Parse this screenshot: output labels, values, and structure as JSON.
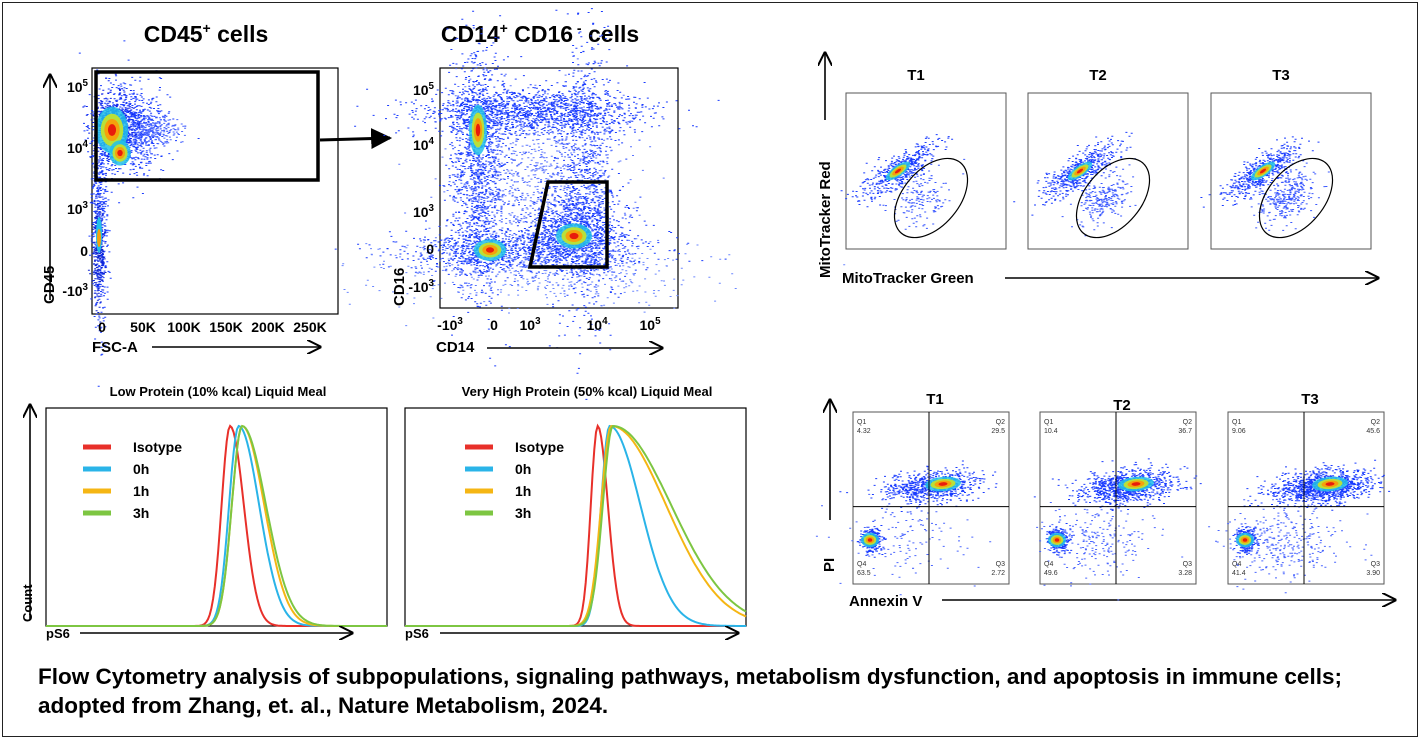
{
  "panel_cd45": {
    "title_main": "CD45",
    "title_sup": "+",
    "title_rest": " cells",
    "ylabel": "CD45",
    "xlabel": "FSC-A",
    "yticks": [
      {
        "base": "10",
        "exp": "5"
      },
      {
        "base": "10",
        "exp": "4"
      },
      {
        "base": "10",
        "exp": "3"
      },
      {
        "base": "0",
        "exp": ""
      },
      {
        "base": "-10",
        "exp": "3"
      }
    ],
    "xticks": [
      "0",
      "50K",
      "100K",
      "150K",
      "200K",
      "250K"
    ]
  },
  "panel_cd14": {
    "title_a": "CD14",
    "title_a_sup": "+",
    "title_b": " CD16",
    "title_b_sup": " -",
    "title_rest": " cells",
    "ylabel": "CD16",
    "xlabel": "CD14",
    "yticks": [
      {
        "base": "10",
        "exp": "5"
      },
      {
        "base": "10",
        "exp": "4"
      },
      {
        "base": "10",
        "exp": "3"
      },
      {
        "base": "0",
        "exp": ""
      },
      {
        "base": "-10",
        "exp": "3"
      }
    ],
    "xticks": [
      {
        "base": "-10",
        "exp": "3"
      },
      {
        "base": "0",
        "exp": ""
      },
      {
        "base": "10",
        "exp": "3"
      },
      {
        "base": "10",
        "exp": "4"
      },
      {
        "base": "10",
        "exp": "5"
      }
    ]
  },
  "mito": {
    "panels": [
      "T1",
      "T2",
      "T3"
    ],
    "ylabel": "MitoTracker Red",
    "xlabel": "MitoTracker Green"
  },
  "annexin": {
    "panels": [
      {
        "title": "T1",
        "q1_label": "Q1",
        "q1": "4.32",
        "q2_label": "Q2",
        "q2": "29.5",
        "q3_label": "Q3",
        "q3": "2.72",
        "q4_label": "Q4",
        "q4": "63.5"
      },
      {
        "title": "T2",
        "q1_label": "Q1",
        "q1": "10.4",
        "q2_label": "Q2",
        "q2": "36.7",
        "q3_label": "Q3",
        "q3": "3.28",
        "q4_label": "Q4",
        "q4": "49.6"
      },
      {
        "title": "T3",
        "q1_label": "Q1",
        "q1": "9.06",
        "q2_label": "Q2",
        "q2": "45.6",
        "q3_label": "Q3",
        "q3": "3.90",
        "q4_label": "Q4",
        "q4": "41.4"
      }
    ],
    "ylabel": "PI",
    "xlabel": "Annexin V"
  },
  "hist_low": {
    "title": "Low Protein (10% kcal) Liquid Meal",
    "ylabel": "Count",
    "xlabel": "pS6",
    "legend": [
      {
        "label": "Isotype",
        "color": "#e8302a"
      },
      {
        "label": "0h",
        "color": "#2ab4e8"
      },
      {
        "label": "1h",
        "color": "#f5b614"
      },
      {
        "label": "3h",
        "color": "#7dc642"
      }
    ]
  },
  "hist_high": {
    "title": "Very High Protein (50% kcal) Liquid Meal",
    "ylabel": "",
    "xlabel": "pS6",
    "legend": [
      {
        "label": "Isotype",
        "color": "#e8302a"
      },
      {
        "label": "0h",
        "color": "#2ab4e8"
      },
      {
        "label": "1h",
        "color": "#f5b614"
      },
      {
        "label": "3h",
        "color": "#7dc642"
      }
    ]
  },
  "caption": "Flow Cytometry  analysis of subpopulations, signaling pathways, metabolism dysfunction, and apoptosis in immune cells; adopted from Zhang, et. al., Nature Metabolism, 2024."
}
